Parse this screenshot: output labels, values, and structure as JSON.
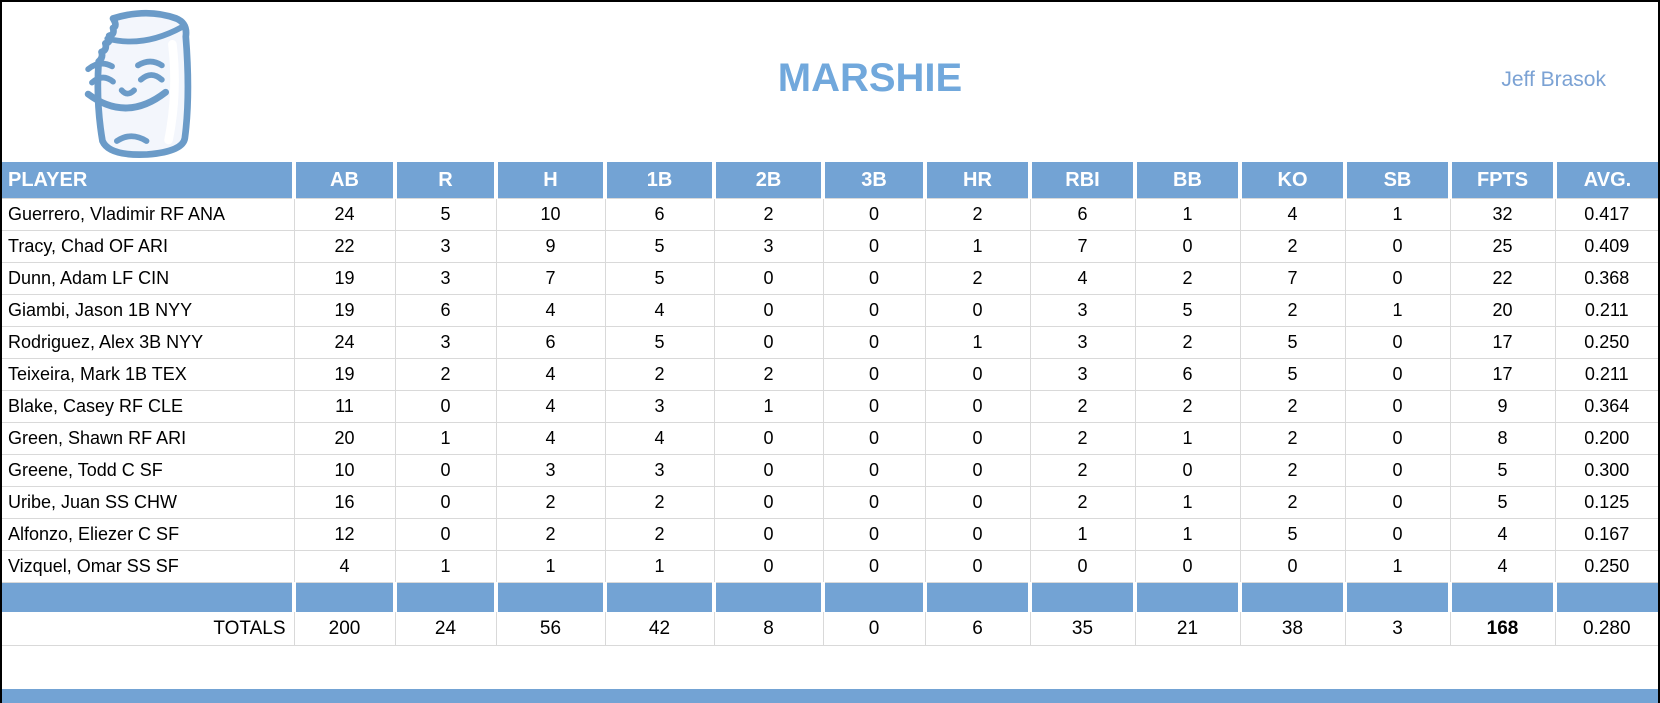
{
  "page": {
    "title": "MARSHIE",
    "byline": "Jeff Brasok",
    "logo": "bitten-marshmallow-mascot"
  },
  "colors": {
    "accent_blue": "#73A3D4",
    "title_blue": "#71A8DC",
    "byline_blue": "#7BA2D4",
    "gridline": "#D9D9D9",
    "text": "#000000",
    "logo_stroke": "#6B9BC8",
    "logo_fill": "#F3F6FC"
  },
  "table": {
    "columns": [
      "PLAYER",
      "AB",
      "R",
      "H",
      "1B",
      "2B",
      "3B",
      "HR",
      "RBI",
      "BB",
      "KO",
      "SB",
      "FPTS",
      "AVG."
    ],
    "rows": [
      {
        "player": "Guerrero, Vladimir RF ANA",
        "stats": [
          "24",
          "5",
          "10",
          "6",
          "2",
          "0",
          "2",
          "6",
          "1",
          "4",
          "1",
          "32",
          "0.417"
        ]
      },
      {
        "player": "Tracy, Chad OF ARI",
        "stats": [
          "22",
          "3",
          "9",
          "5",
          "3",
          "0",
          "1",
          "7",
          "0",
          "2",
          "0",
          "25",
          "0.409"
        ]
      },
      {
        "player": "Dunn, Adam LF CIN",
        "stats": [
          "19",
          "3",
          "7",
          "5",
          "0",
          "0",
          "2",
          "4",
          "2",
          "7",
          "0",
          "22",
          "0.368"
        ]
      },
      {
        "player": "Giambi, Jason 1B NYY",
        "stats": [
          "19",
          "6",
          "4",
          "4",
          "0",
          "0",
          "0",
          "3",
          "5",
          "2",
          "1",
          "20",
          "0.211"
        ]
      },
      {
        "player": "Rodriguez, Alex 3B NYY",
        "stats": [
          "24",
          "3",
          "6",
          "5",
          "0",
          "0",
          "1",
          "3",
          "2",
          "5",
          "0",
          "17",
          "0.250"
        ]
      },
      {
        "player": "Teixeira, Mark 1B TEX",
        "stats": [
          "19",
          "2",
          "4",
          "2",
          "2",
          "0",
          "0",
          "3",
          "6",
          "5",
          "0",
          "17",
          "0.211"
        ]
      },
      {
        "player": "Blake, Casey RF CLE",
        "stats": [
          "11",
          "0",
          "4",
          "3",
          "1",
          "0",
          "0",
          "2",
          "2",
          "2",
          "0",
          "9",
          "0.364"
        ]
      },
      {
        "player": "Green, Shawn RF ARI",
        "stats": [
          "20",
          "1",
          "4",
          "4",
          "0",
          "0",
          "0",
          "2",
          "1",
          "2",
          "0",
          "8",
          "0.200"
        ]
      },
      {
        "player": "Greene, Todd C SF",
        "stats": [
          "10",
          "0",
          "3",
          "3",
          "0",
          "0",
          "0",
          "2",
          "0",
          "2",
          "0",
          "5",
          "0.300"
        ]
      },
      {
        "player": "Uribe, Juan SS CHW",
        "stats": [
          "16",
          "0",
          "2",
          "2",
          "0",
          "0",
          "0",
          "2",
          "1",
          "2",
          "0",
          "5",
          "0.125"
        ]
      },
      {
        "player": "Alfonzo, Eliezer C SF",
        "stats": [
          "12",
          "0",
          "2",
          "2",
          "0",
          "0",
          "0",
          "1",
          "1",
          "5",
          "0",
          "4",
          "0.167"
        ]
      },
      {
        "player": "Vizquel, Omar SS SF",
        "stats": [
          "4",
          "1",
          "1",
          "1",
          "0",
          "0",
          "0",
          "0",
          "0",
          "0",
          "1",
          "4",
          "0.250"
        ]
      }
    ],
    "totals": {
      "label": "TOTALS",
      "stats": [
        "200",
        "24",
        "56",
        "42",
        "8",
        "0",
        "6",
        "35",
        "21",
        "38",
        "3",
        "168",
        "0.280"
      ],
      "bold_stat_index": 11
    }
  }
}
